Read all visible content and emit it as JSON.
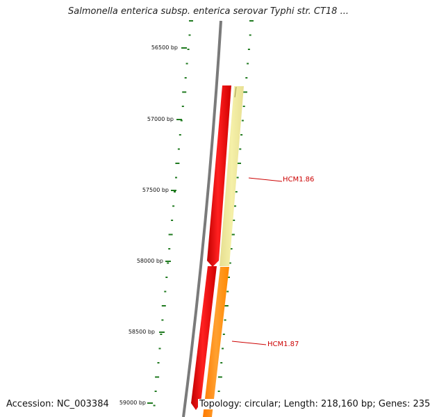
{
  "title": "Salmonella enterica subsp. enterica serovar Typhi str. CT18 ...",
  "accession_text": "Accession: NC_003384",
  "summary_text": "Topology: circular; Length: 218,160 bp; Genes: 235",
  "ruler": {
    "labels": [
      "56500 bp",
      "57000 bp",
      "57500 bp",
      "58000 bp",
      "58500 bp",
      "59000 bp"
    ],
    "tick_color": "#1f7a1f"
  },
  "genes": [
    {
      "name": "HCM1.86",
      "strand": "reverse",
      "track_color": "#ff0000",
      "twin_color": "#f0e68c"
    },
    {
      "name": "HCM1.87",
      "strand": "reverse",
      "track_color": "#ff0000",
      "twin_color": "#ff8c00"
    }
  ],
  "colors": {
    "backbone": "#7a7a7a",
    "label_line": "#cc0000"
  }
}
